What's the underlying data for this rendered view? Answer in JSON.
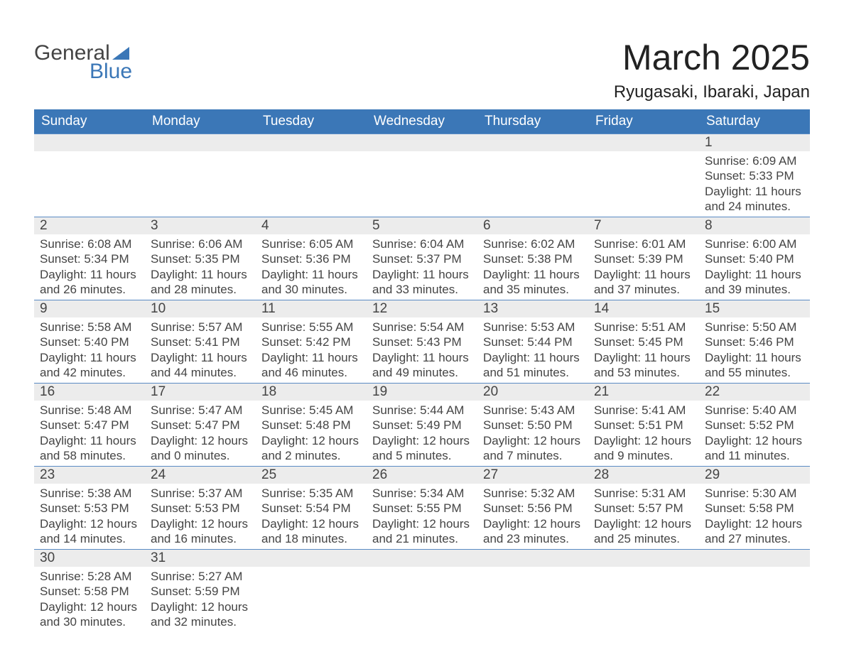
{
  "brand": {
    "line1": "General",
    "line2": "Blue"
  },
  "header": {
    "month_title": "March 2025",
    "location": "Ryugasaki, Ibaraki, Japan"
  },
  "colors": {
    "header_bg": "#3b77b7",
    "header_text": "#ffffff",
    "daynum_bg": "#ececec",
    "row_divider": "#5a8bc4",
    "text": "#444444",
    "page_bg": "#ffffff"
  },
  "weekdays": [
    "Sunday",
    "Monday",
    "Tuesday",
    "Wednesday",
    "Thursday",
    "Friday",
    "Saturday"
  ],
  "labels": {
    "sunrise": "Sunrise",
    "sunset": "Sunset",
    "daylight": "Daylight"
  },
  "days": [
    {
      "n": 1,
      "sunrise": "6:09 AM",
      "sunset": "5:33 PM",
      "daylight": "11 hours and 24 minutes."
    },
    {
      "n": 2,
      "sunrise": "6:08 AM",
      "sunset": "5:34 PM",
      "daylight": "11 hours and 26 minutes."
    },
    {
      "n": 3,
      "sunrise": "6:06 AM",
      "sunset": "5:35 PM",
      "daylight": "11 hours and 28 minutes."
    },
    {
      "n": 4,
      "sunrise": "6:05 AM",
      "sunset": "5:36 PM",
      "daylight": "11 hours and 30 minutes."
    },
    {
      "n": 5,
      "sunrise": "6:04 AM",
      "sunset": "5:37 PM",
      "daylight": "11 hours and 33 minutes."
    },
    {
      "n": 6,
      "sunrise": "6:02 AM",
      "sunset": "5:38 PM",
      "daylight": "11 hours and 35 minutes."
    },
    {
      "n": 7,
      "sunrise": "6:01 AM",
      "sunset": "5:39 PM",
      "daylight": "11 hours and 37 minutes."
    },
    {
      "n": 8,
      "sunrise": "6:00 AM",
      "sunset": "5:40 PM",
      "daylight": "11 hours and 39 minutes."
    },
    {
      "n": 9,
      "sunrise": "5:58 AM",
      "sunset": "5:40 PM",
      "daylight": "11 hours and 42 minutes."
    },
    {
      "n": 10,
      "sunrise": "5:57 AM",
      "sunset": "5:41 PM",
      "daylight": "11 hours and 44 minutes."
    },
    {
      "n": 11,
      "sunrise": "5:55 AM",
      "sunset": "5:42 PM",
      "daylight": "11 hours and 46 minutes."
    },
    {
      "n": 12,
      "sunrise": "5:54 AM",
      "sunset": "5:43 PM",
      "daylight": "11 hours and 49 minutes."
    },
    {
      "n": 13,
      "sunrise": "5:53 AM",
      "sunset": "5:44 PM",
      "daylight": "11 hours and 51 minutes."
    },
    {
      "n": 14,
      "sunrise": "5:51 AM",
      "sunset": "5:45 PM",
      "daylight": "11 hours and 53 minutes."
    },
    {
      "n": 15,
      "sunrise": "5:50 AM",
      "sunset": "5:46 PM",
      "daylight": "11 hours and 55 minutes."
    },
    {
      "n": 16,
      "sunrise": "5:48 AM",
      "sunset": "5:47 PM",
      "daylight": "11 hours and 58 minutes."
    },
    {
      "n": 17,
      "sunrise": "5:47 AM",
      "sunset": "5:47 PM",
      "daylight": "12 hours and 0 minutes."
    },
    {
      "n": 18,
      "sunrise": "5:45 AM",
      "sunset": "5:48 PM",
      "daylight": "12 hours and 2 minutes."
    },
    {
      "n": 19,
      "sunrise": "5:44 AM",
      "sunset": "5:49 PM",
      "daylight": "12 hours and 5 minutes."
    },
    {
      "n": 20,
      "sunrise": "5:43 AM",
      "sunset": "5:50 PM",
      "daylight": "12 hours and 7 minutes."
    },
    {
      "n": 21,
      "sunrise": "5:41 AM",
      "sunset": "5:51 PM",
      "daylight": "12 hours and 9 minutes."
    },
    {
      "n": 22,
      "sunrise": "5:40 AM",
      "sunset": "5:52 PM",
      "daylight": "12 hours and 11 minutes."
    },
    {
      "n": 23,
      "sunrise": "5:38 AM",
      "sunset": "5:53 PM",
      "daylight": "12 hours and 14 minutes."
    },
    {
      "n": 24,
      "sunrise": "5:37 AM",
      "sunset": "5:53 PM",
      "daylight": "12 hours and 16 minutes."
    },
    {
      "n": 25,
      "sunrise": "5:35 AM",
      "sunset": "5:54 PM",
      "daylight": "12 hours and 18 minutes."
    },
    {
      "n": 26,
      "sunrise": "5:34 AM",
      "sunset": "5:55 PM",
      "daylight": "12 hours and 21 minutes."
    },
    {
      "n": 27,
      "sunrise": "5:32 AM",
      "sunset": "5:56 PM",
      "daylight": "12 hours and 23 minutes."
    },
    {
      "n": 28,
      "sunrise": "5:31 AM",
      "sunset": "5:57 PM",
      "daylight": "12 hours and 25 minutes."
    },
    {
      "n": 29,
      "sunrise": "5:30 AM",
      "sunset": "5:58 PM",
      "daylight": "12 hours and 27 minutes."
    },
    {
      "n": 30,
      "sunrise": "5:28 AM",
      "sunset": "5:58 PM",
      "daylight": "12 hours and 30 minutes."
    },
    {
      "n": 31,
      "sunrise": "5:27 AM",
      "sunset": "5:59 PM",
      "daylight": "12 hours and 32 minutes."
    }
  ],
  "layout": {
    "first_weekday_index": 6,
    "weeks": 6,
    "cols": 7
  }
}
